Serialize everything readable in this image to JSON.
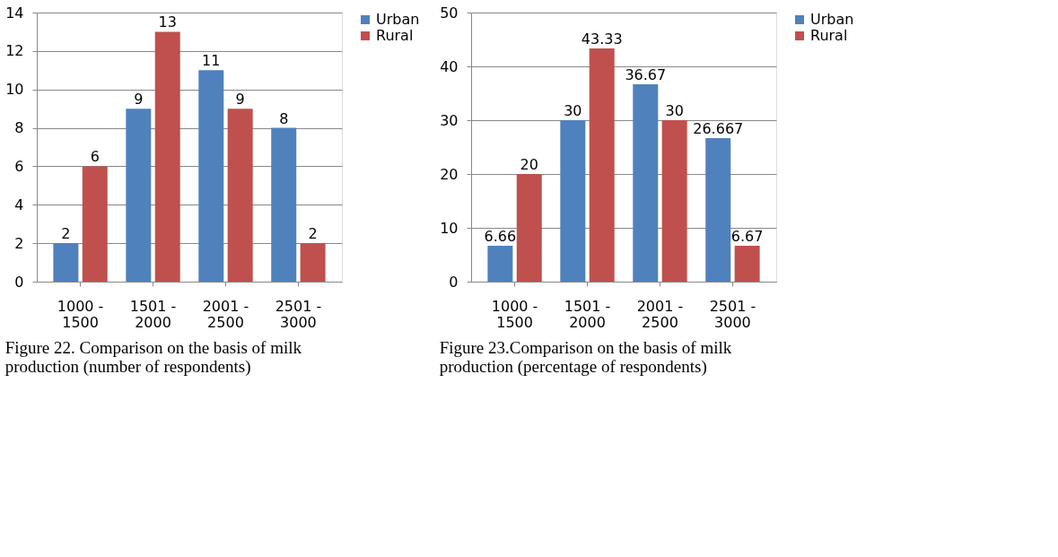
{
  "chart_data": [
    {
      "type": "bar",
      "categories": [
        "1000 - 1500",
        "1501 - 2000",
        "2001 - 2500",
        "2501 - 3000"
      ],
      "series": [
        {
          "name": "Urban",
          "color": "#4f81bd",
          "values": [
            2,
            9,
            11,
            8
          ]
        },
        {
          "name": "Rural",
          "color": "#c0504d",
          "values": [
            6,
            13,
            9,
            2
          ]
        }
      ],
      "ylim": [
        0,
        14
      ],
      "yticks": [
        0,
        2,
        4,
        6,
        8,
        10,
        12,
        14
      ],
      "grid": "y",
      "legend": "right",
      "data_labels": true,
      "annotations": [
        "Figure 22. Comparison on the basis of milk production (number of respondents)"
      ]
    },
    {
      "type": "bar",
      "categories": [
        "1000 - 1500",
        "1501 - 2000",
        "2001 - 2500",
        "2501 - 3000"
      ],
      "series": [
        {
          "name": "Urban",
          "color": "#4f81bd",
          "values": [
            6.66,
            30,
            36.67,
            26.667
          ]
        },
        {
          "name": "Rural",
          "color": "#c0504d",
          "values": [
            20,
            43.33,
            30,
            6.67
          ]
        }
      ],
      "ylim": [
        0,
        50
      ],
      "yticks": [
        0,
        10,
        20,
        30,
        40,
        50
      ],
      "grid": "y",
      "legend": "top right",
      "data_labels": true,
      "annotations": [
        "Figure 23.Comparison on the basis of milk production (percentage of respondents)"
      ]
    }
  ]
}
